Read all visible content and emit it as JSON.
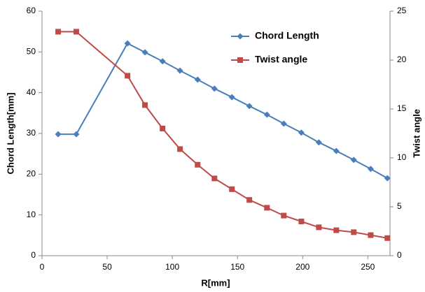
{
  "chart_data": {
    "type": "line",
    "x_label": "R[mm]",
    "y_label": "Chord Length[mm]",
    "y2_label": "Twist angle",
    "x": [
      12.4,
      26.3,
      65.6,
      79,
      92.5,
      105.9,
      119.4,
      132.3,
      145.7,
      159.1,
      172.6,
      185.5,
      199,
      212.4,
      225.8,
      239.2,
      252.2,
      265
    ],
    "series": [
      {
        "name": "Chord Length",
        "color": "#4a7ebb",
        "marker": "diamond",
        "axis": "y",
        "values": [
          29.8,
          29.8,
          52.1,
          49.9,
          47.7,
          45.4,
          43.2,
          41,
          38.9,
          36.7,
          34.6,
          32.4,
          30.2,
          27.8,
          25.7,
          23.5,
          21.3,
          19.0
        ]
      },
      {
        "name": "Twist angle",
        "color": "#be4b48",
        "marker": "square",
        "axis": "y2",
        "values": [
          22.9,
          22.9,
          18.4,
          15.4,
          13.0,
          10.9,
          9.3,
          7.9,
          6.8,
          5.7,
          4.9,
          4.1,
          3.5,
          2.9,
          2.6,
          2.4,
          2.1,
          1.8
        ]
      }
    ],
    "xlim": [
      0,
      267
    ],
    "xticks": [
      0,
      50,
      100,
      150,
      200,
      250
    ],
    "ylim": [
      0,
      60
    ],
    "yticks": [
      0,
      10,
      20,
      30,
      40,
      50,
      60
    ],
    "y2lim": [
      0,
      25
    ],
    "y2ticks": [
      0,
      5,
      10,
      15,
      20,
      25
    ],
    "legend": "upper-right"
  }
}
